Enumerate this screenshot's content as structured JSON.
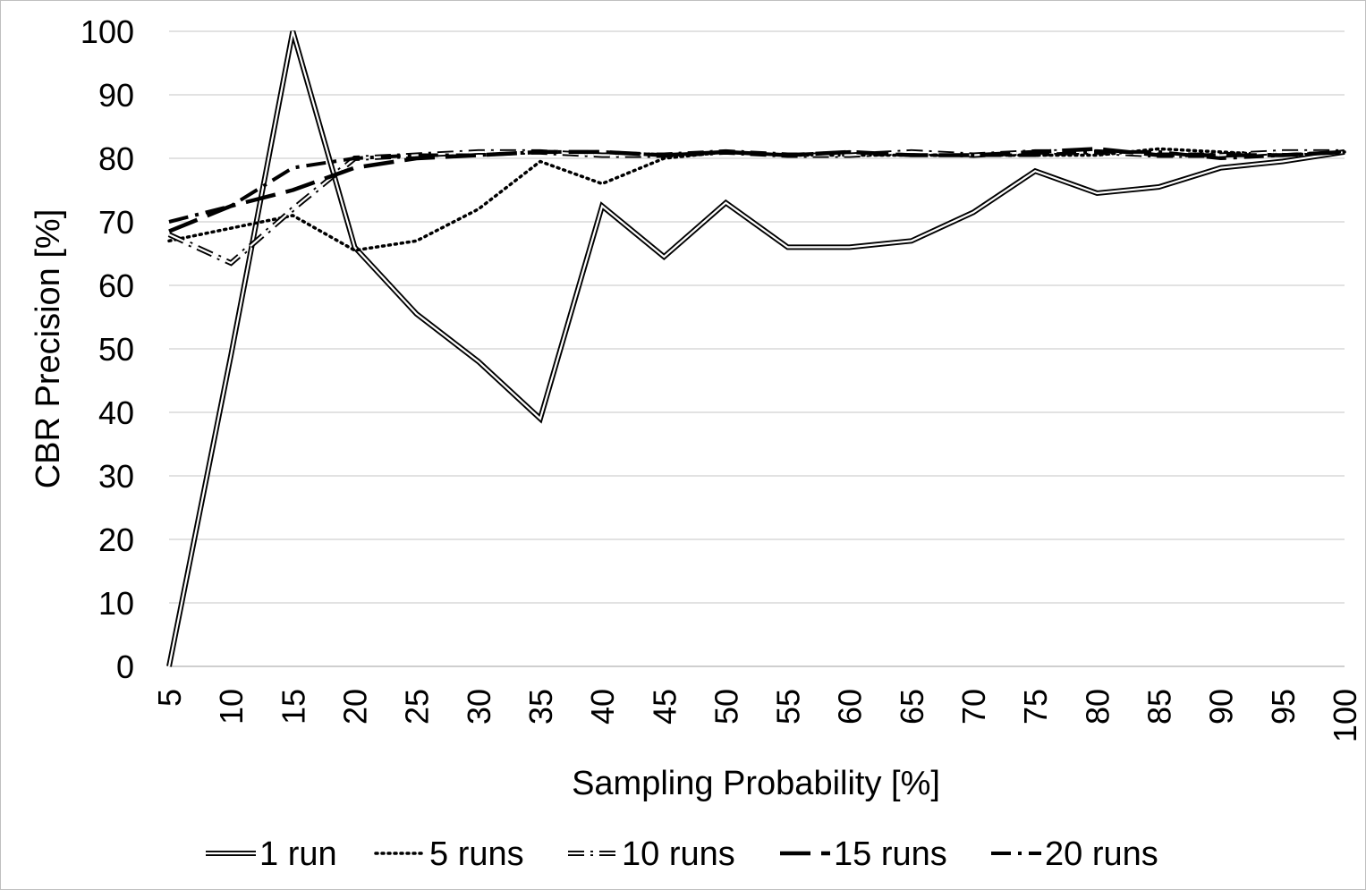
{
  "chart_data": {
    "type": "line",
    "title": "",
    "xlabel": "Sampling Probability [%]",
    "ylabel": "CBR Precision [%]",
    "categories": [
      "5",
      "10",
      "15",
      "20",
      "25",
      "30",
      "35",
      "40",
      "45",
      "50",
      "55",
      "60",
      "65",
      "70",
      "75",
      "80",
      "85",
      "90",
      "95",
      "100"
    ],
    "ylim": [
      0,
      100
    ],
    "yticks": [
      0,
      10,
      20,
      30,
      40,
      50,
      60,
      70,
      80,
      90,
      100
    ],
    "grid": true,
    "legend_position": "bottom",
    "series": [
      {
        "name": "1 run",
        "style": "double",
        "values": [
          0,
          49,
          100,
          66,
          55.5,
          48,
          39,
          72.5,
          64.5,
          73,
          66,
          66,
          67,
          71.5,
          78,
          74.5,
          75.5,
          78.5,
          79.5,
          81
        ]
      },
      {
        "name": "5 runs",
        "style": "dotted",
        "values": [
          67,
          69,
          71,
          65.5,
          67,
          72,
          79.5,
          76,
          80,
          81,
          80.5,
          80.5,
          80.5,
          80.5,
          80.5,
          80.5,
          81.5,
          81,
          80.5,
          81
        ]
      },
      {
        "name": "10 runs",
        "style": "dash-dot-double",
        "values": [
          68,
          63.5,
          72,
          80,
          80.5,
          81,
          81,
          80.5,
          80.5,
          81,
          80.5,
          80.5,
          81,
          80.5,
          81,
          81,
          80.5,
          80.5,
          81,
          81
        ]
      },
      {
        "name": "15 runs",
        "style": "long-dash",
        "values": [
          68.5,
          72.5,
          75,
          78.5,
          80,
          80.5,
          81,
          81,
          80.5,
          81,
          80.5,
          81,
          80.5,
          80.5,
          81,
          81.5,
          80.5,
          80.5,
          80.5,
          81
        ]
      },
      {
        "name": "20 runs",
        "style": "dash-dot",
        "values": [
          70,
          72.5,
          78.5,
          80,
          80.5,
          80.5,
          81,
          81,
          80.5,
          81,
          80.5,
          81,
          80.5,
          80.5,
          80.5,
          81,
          81,
          80,
          80.5,
          81
        ]
      }
    ],
    "colors": {
      "line": "#000000",
      "grid": "#d9d9d9",
      "border": "#bfbfbf"
    }
  }
}
